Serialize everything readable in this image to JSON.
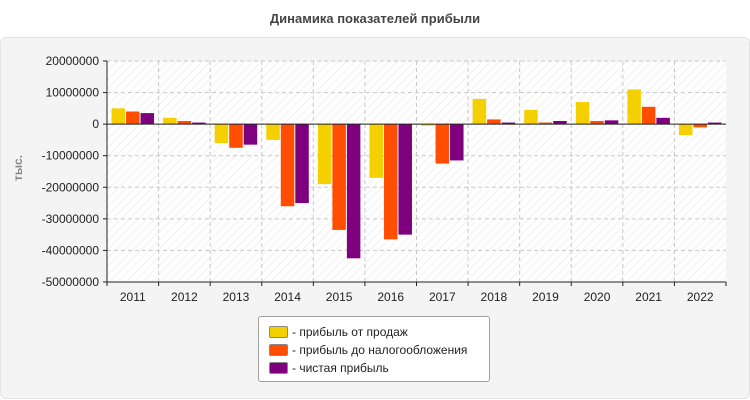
{
  "chart_data": {
    "type": "bar",
    "title": "Динамика показателей прибыли",
    "ylabel": "тыс.",
    "xlabel": "",
    "ylim": [
      -50000000,
      20000000
    ],
    "yticks": [
      20000000,
      10000000,
      0,
      -10000000,
      -20000000,
      -30000000,
      -40000000,
      -50000000
    ],
    "grid": true,
    "legend_position": "bottom-center",
    "categories": [
      "2011",
      "2012",
      "2013",
      "2014",
      "2015",
      "2016",
      "2017",
      "2018",
      "2019",
      "2020",
      "2021",
      "2022"
    ],
    "series": [
      {
        "name": "- прибыль от продаж",
        "color": "#f5d000",
        "values": [
          5000000,
          2000000,
          -6000000,
          -5000000,
          -19000000,
          -17000000,
          -500000,
          8000000,
          4500000,
          7000000,
          11000000,
          -3500000
        ]
      },
      {
        "name": "- прибыль до налогообложения",
        "color": "#ff4e00",
        "values": [
          4000000,
          1000000,
          -7500000,
          -26000000,
          -33500000,
          -36500000,
          -12500000,
          1500000,
          500000,
          1000000,
          5500000,
          -1000000
        ]
      },
      {
        "name": "- чистая прибыль",
        "color": "#7f007f",
        "values": [
          3500000,
          500000,
          -6500000,
          -25000000,
          -42500000,
          -35000000,
          -11500000,
          500000,
          1000000,
          1200000,
          2000000,
          500000
        ]
      }
    ]
  }
}
